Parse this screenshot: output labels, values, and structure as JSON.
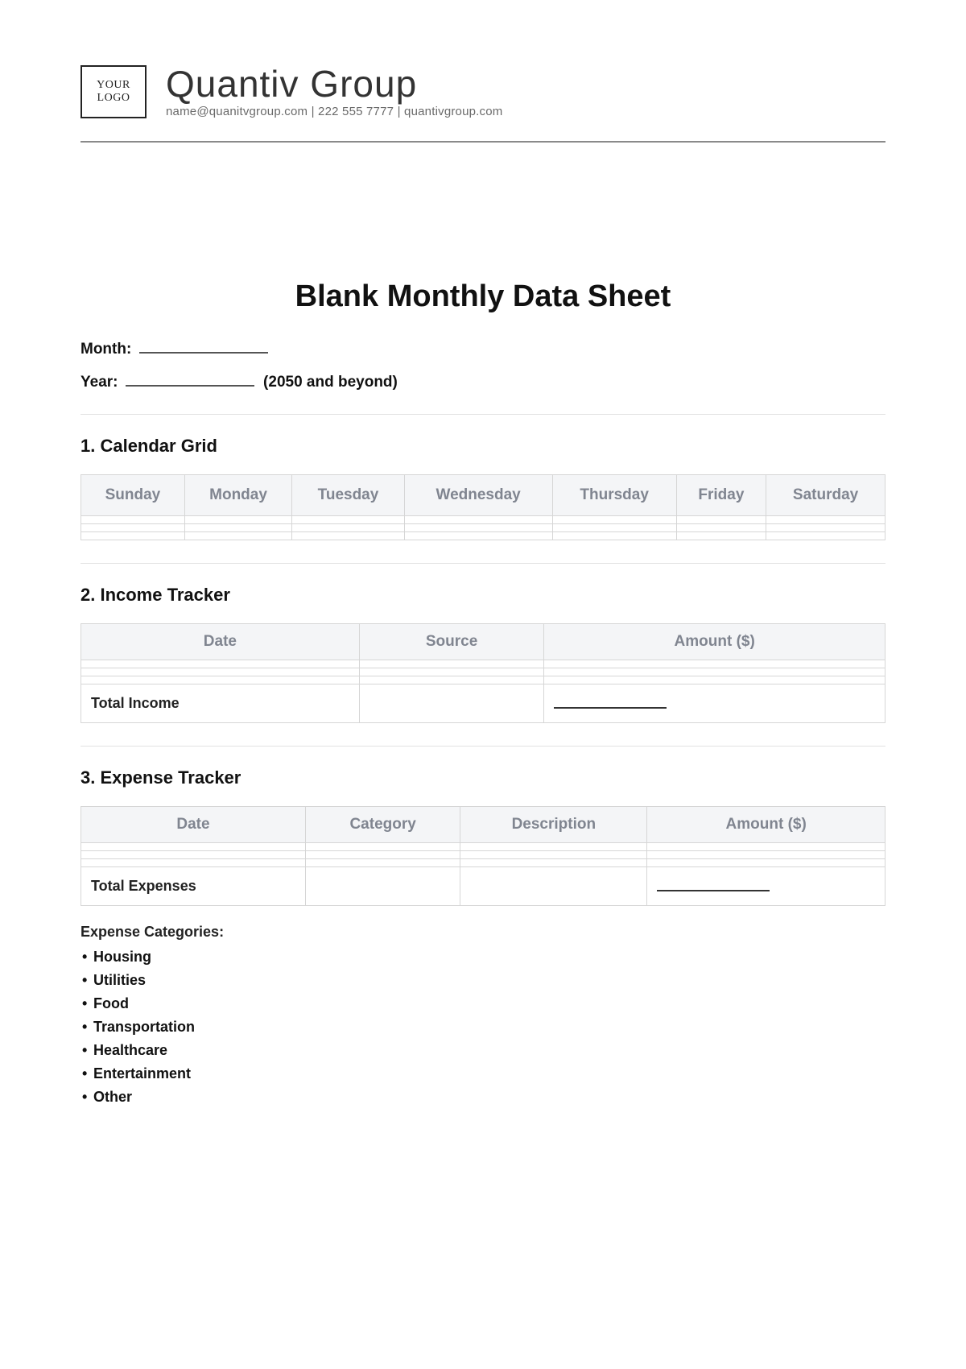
{
  "header": {
    "logo_text": "YOUR\nLOGO",
    "company": "Quantiv Group",
    "email": "name@quanitvgroup.com",
    "phone": "222 555 7777",
    "site": "quantivgroup.com"
  },
  "title": "Blank Monthly Data Sheet",
  "fields": {
    "month_label": "Month:",
    "year_label": "Year:",
    "year_suffix": "(2050 and beyond)"
  },
  "sections": {
    "calendar": {
      "heading": "1. Calendar Grid"
    },
    "income": {
      "heading": "2. Income Tracker",
      "total_label": "Total Income"
    },
    "expense": {
      "heading": "3. Expense Tracker",
      "total_label": "Total Expenses"
    }
  },
  "calendar": {
    "days": [
      "Sunday",
      "Monday",
      "Tuesday",
      "Wednesday",
      "Thursday",
      "Friday",
      "Saturday"
    ],
    "blank_rows": 3
  },
  "income_table": {
    "columns": [
      "Date",
      "Source",
      "Amount ($)"
    ],
    "blank_rows": 3
  },
  "expense_table": {
    "columns": [
      "Date",
      "Category",
      "Description",
      "Amount ($)"
    ],
    "blank_rows": 3
  },
  "expense_categories": {
    "label": "Expense Categories:",
    "items": [
      "Housing",
      "Utilities",
      "Food",
      "Transportation",
      "Healthcare",
      "Entertainment",
      "Other"
    ]
  },
  "styling": {
    "page_bg": "#ffffff",
    "text": "#222222",
    "muted_text": "#808590",
    "header_bg": "#f4f5f7",
    "border": "#d6d6d6",
    "divider": "#8a8a8a",
    "light_sep": "#e1e1e1",
    "title_fontsize": 38,
    "section_fontsize": 22,
    "body_fontsize": 18
  }
}
